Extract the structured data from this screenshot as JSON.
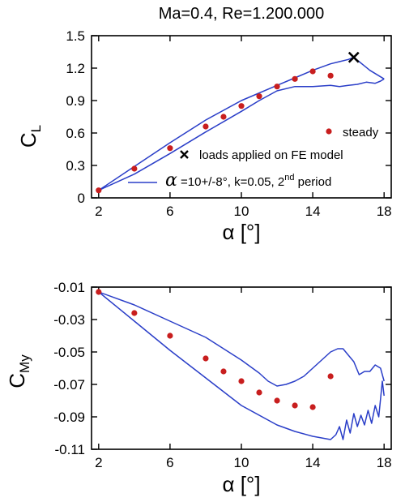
{
  "title": "Ma=0.4, Re=1.200.000",
  "colors": {
    "steady": "#c81e1e",
    "unsteady": "#2a3ec8",
    "marker": "#000000",
    "axes": "#000000"
  },
  "legend": {
    "steady": "steady",
    "loads": "loads applied on FE model",
    "alpha_symbol": "α",
    "unsteady_prefix": " =10+/-8°, k=0.05, 2",
    "unsteady_sup": "nd",
    "unsteady_suffix": " period"
  },
  "chart_data": [
    {
      "type": "line",
      "ylabel_main": "C",
      "ylabel_sub": "L",
      "xlabel": "α [°]",
      "xlim": [
        1.6,
        18.4
      ],
      "ylim": [
        0,
        1.5
      ],
      "xticks": [
        2,
        6,
        10,
        14,
        18
      ],
      "yticks": [
        0,
        0.3,
        0.6,
        0.9,
        1.2,
        1.5
      ],
      "ytick_labels": [
        "0",
        "0.3",
        "0.6",
        "0.9",
        "1.2",
        "1.5"
      ],
      "steady": {
        "x": [
          2,
          4,
          6,
          8,
          9,
          10,
          11,
          12,
          13,
          14,
          15
        ],
        "y": [
          0.07,
          0.27,
          0.46,
          0.66,
          0.75,
          0.85,
          0.94,
          1.03,
          1.1,
          1.17,
          1.13
        ]
      },
      "fe_load": {
        "x": 16.3,
        "y": 1.3
      },
      "unsteady_upstroke": {
        "x": [
          2,
          4,
          6,
          8,
          10,
          12,
          13,
          14,
          15,
          15.5,
          16.0,
          16.3,
          16.6,
          16.9,
          17.2,
          17.5,
          17.8,
          18
        ],
        "y": [
          0.07,
          0.29,
          0.51,
          0.72,
          0.9,
          1.04,
          1.11,
          1.18,
          1.24,
          1.26,
          1.28,
          1.3,
          1.26,
          1.22,
          1.18,
          1.15,
          1.12,
          1.1
        ]
      },
      "unsteady_downstroke": {
        "x": [
          18,
          17.8,
          17.5,
          17.0,
          16.5,
          16.0,
          15.5,
          15.0,
          14.0,
          13.0,
          12.0,
          11.0,
          10,
          8,
          6,
          4,
          2
        ],
        "y": [
          1.1,
          1.08,
          1.06,
          1.07,
          1.05,
          1.04,
          1.03,
          1.04,
          1.03,
          1.03,
          0.99,
          0.9,
          0.8,
          0.61,
          0.41,
          0.22,
          0.07
        ]
      }
    },
    {
      "type": "line",
      "ylabel_main": "C",
      "ylabel_sub": "My",
      "xlabel": "α [°]",
      "xlim": [
        1.6,
        18.4
      ],
      "ylim": [
        -0.11,
        -0.01
      ],
      "xticks": [
        2,
        6,
        10,
        14,
        18
      ],
      "yticks": [
        -0.01,
        -0.03,
        -0.05,
        -0.07,
        -0.09,
        -0.11
      ],
      "ytick_labels": [
        "-0.01",
        "-0.03",
        "-0.05",
        "-0.07",
        "-0.09",
        "-0.11"
      ],
      "steady": {
        "x": [
          2,
          4,
          6,
          8,
          9,
          10,
          11,
          12,
          13,
          14,
          15
        ],
        "y": [
          -0.013,
          -0.026,
          -0.04,
          -0.054,
          -0.062,
          -0.068,
          -0.075,
          -0.08,
          -0.083,
          -0.084,
          -0.065
        ]
      },
      "unsteady_upstroke": {
        "x": [
          2,
          4,
          6,
          8,
          10,
          12,
          13,
          14,
          15,
          15.3,
          15.5,
          15.7,
          15.9,
          16.1,
          16.3,
          16.5,
          16.7,
          16.9,
          17.1,
          17.3,
          17.5,
          17.7,
          17.9,
          18
        ],
        "y": [
          -0.013,
          -0.031,
          -0.049,
          -0.066,
          -0.083,
          -0.095,
          -0.099,
          -0.102,
          -0.104,
          -0.101,
          -0.096,
          -0.104,
          -0.092,
          -0.1,
          -0.088,
          -0.096,
          -0.089,
          -0.095,
          -0.086,
          -0.094,
          -0.083,
          -0.09,
          -0.068,
          -0.077
        ]
      },
      "unsteady_downstroke": {
        "x": [
          18,
          17.8,
          17.5,
          17.2,
          16.9,
          16.6,
          16.3,
          16.0,
          15.7,
          15.4,
          15.0,
          14.5,
          14.0,
          13.5,
          13.0,
          12.5,
          12.0,
          11.5,
          11.0,
          10,
          8,
          6,
          4,
          2
        ],
        "y": [
          -0.068,
          -0.06,
          -0.058,
          -0.062,
          -0.062,
          -0.064,
          -0.056,
          -0.052,
          -0.048,
          -0.048,
          -0.05,
          -0.055,
          -0.06,
          -0.065,
          -0.068,
          -0.07,
          -0.071,
          -0.068,
          -0.063,
          -0.055,
          -0.041,
          -0.031,
          -0.021,
          -0.013
        ]
      }
    }
  ]
}
